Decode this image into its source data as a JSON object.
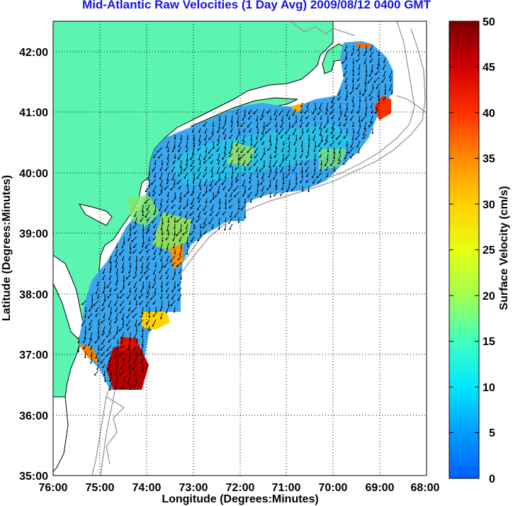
{
  "title": "Mid-Atlantic Raw Velocities (1 Day Avg) 2009/08/12 0400 GMT",
  "xlabel": "Longitude (Degrees:Minutes)",
  "ylabel": "Latitude (Degrees:Minutes)",
  "colorbar_label": "Surface Velocity (cm/s)",
  "x_ticks": [
    "76:00",
    "75:00",
    "74:00",
    "73:00",
    "72:00",
    "71:00",
    "70:00",
    "69:00",
    "68:00"
  ],
  "y_ticks": [
    "42:00",
    "41:00",
    "40:00",
    "39:00",
    "38:00",
    "37:00",
    "36:00",
    "35:00"
  ],
  "colorbar_ticks": [
    "50",
    "45",
    "40",
    "35",
    "30",
    "25",
    "20",
    "15",
    "10",
    "5",
    "0"
  ],
  "colors": {
    "land": "#5cf5b0",
    "title": "#1414e6",
    "arrows": "#000000",
    "bathymetry": "#909090"
  },
  "chart_data": {
    "type": "heatmap",
    "title": "Mid-Atlantic Raw Velocities (1 Day Avg) 2009/08/12 0400 GMT",
    "xlabel": "Longitude (Degrees:Minutes)",
    "ylabel": "Latitude (Degrees:Minutes)",
    "xlim": [
      -76,
      -68
    ],
    "ylim": [
      35,
      42.5
    ],
    "colorbar": {
      "label": "Surface Velocity (cm/s)",
      "range": [
        0,
        50
      ],
      "colormap": "jet"
    },
    "grid": true,
    "max_speed_region": {
      "lon": [
        -74.6,
        -74.0
      ],
      "lat": [
        36.4,
        37.2
      ],
      "speed_cm_s": 50
    }
  }
}
